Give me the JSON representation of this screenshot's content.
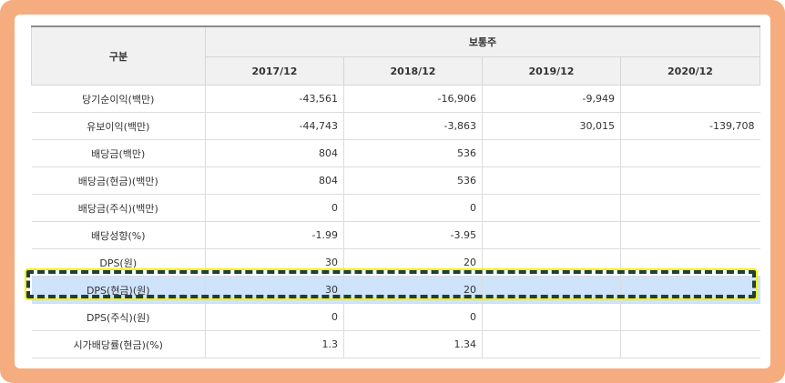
{
  "table": {
    "header_category": "구분",
    "header_group": "보통주",
    "years": [
      "2017/12",
      "2018/12",
      "2019/12",
      "2020/12"
    ],
    "rows": [
      {
        "label": "당기순이익(백만)",
        "values": [
          "-43,561",
          "-16,906",
          "-9,949",
          ""
        ]
      },
      {
        "label": "유보이익(백만)",
        "values": [
          "-44,743",
          "-3,863",
          "30,015",
          "-139,708"
        ]
      },
      {
        "label": "배당금(백만)",
        "values": [
          "804",
          "536",
          "",
          ""
        ]
      },
      {
        "label": "배당금(현금)(백만)",
        "values": [
          "804",
          "536",
          "",
          ""
        ]
      },
      {
        "label": "배당금(주식)(백만)",
        "values": [
          "0",
          "0",
          "",
          ""
        ]
      },
      {
        "label": "배당성향(%)",
        "values": [
          "-1.99",
          "-3.95",
          "",
          ""
        ]
      },
      {
        "label": "DPS(원)",
        "values": [
          "30",
          "20",
          "",
          ""
        ]
      },
      {
        "label": "DPS(현금)(원)",
        "values": [
          "30",
          "20",
          "",
          ""
        ]
      },
      {
        "label": "DPS(주식)(원)",
        "values": [
          "0",
          "0",
          "",
          ""
        ]
      },
      {
        "label": "시가배당률(현금)(%)",
        "values": [
          "1.3",
          "1.34",
          "",
          ""
        ]
      }
    ],
    "highlighted_row": "DPS(현금)(원)"
  },
  "colors": {
    "frame": "#f5ad7f",
    "highlight_row_bg": "#cfe3fb",
    "highlight_border": "#1f3f3a",
    "highlight_outline": "#f7f200"
  }
}
